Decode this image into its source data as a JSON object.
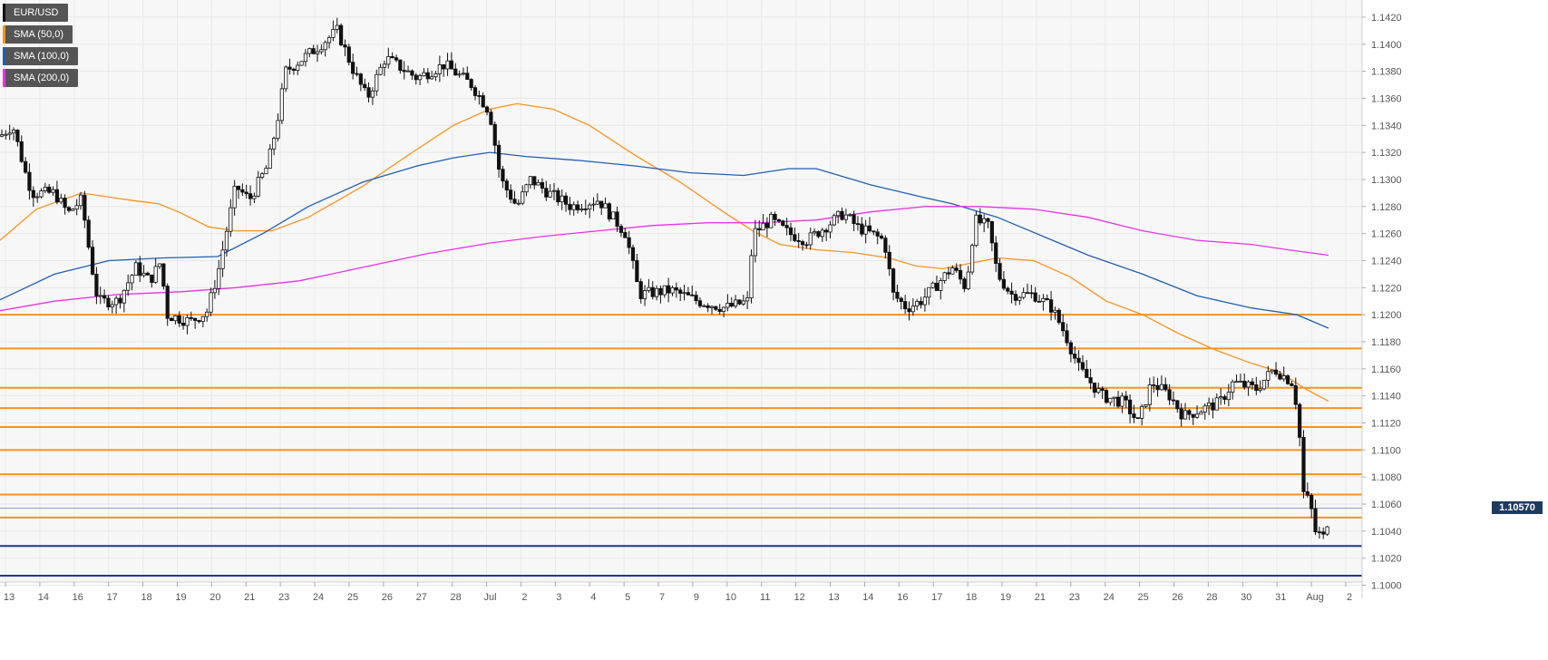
{
  "chart_data": {
    "type": "candlestick",
    "symbol": "EUR/USD",
    "current_price": "1.10570",
    "ylim": [
      1.1,
      1.143
    ],
    "y_ticks": [
      "1.1000",
      "1.1020",
      "1.1040",
      "1.1060",
      "1.1080",
      "1.1100",
      "1.1120",
      "1.1140",
      "1.1160",
      "1.1180",
      "1.1200",
      "1.1220",
      "1.1240",
      "1.1260",
      "1.1280",
      "1.1300",
      "1.1320",
      "1.1340",
      "1.1360",
      "1.1380",
      "1.1400",
      "1.1420"
    ],
    "x_tick_labels": [
      "13",
      "14",
      "16",
      "17",
      "18",
      "19",
      "20",
      "21",
      "23",
      "24",
      "25",
      "26",
      "27",
      "28",
      "Jul",
      "2",
      "3",
      "4",
      "5",
      "7",
      "9",
      "10",
      "11",
      "12",
      "13",
      "14",
      "16",
      "17",
      "18",
      "19",
      "21",
      "23",
      "24",
      "25",
      "26",
      "28",
      "30",
      "31",
      "Aug",
      "2"
    ],
    "legend": [
      {
        "label": "EUR/USD",
        "color": "#111111"
      },
      {
        "label": "SMA (50,0)",
        "color": "#f7931e"
      },
      {
        "label": "SMA (100,0)",
        "color": "#2060b0"
      },
      {
        "label": "SMA (200,0)",
        "color": "#e633e6"
      }
    ],
    "horizontal_levels": {
      "orange": [
        1.12,
        1.1175,
        1.1146,
        1.1131,
        1.1117,
        1.11,
        1.1082,
        1.1067,
        1.105
      ],
      "blue": [
        1.1029,
        1.1007
      ],
      "current_line": 1.1057
    },
    "series": [
      {
        "name": "EUR/USD",
        "kind": "ohlc",
        "anchors": [
          [
            0,
            1.1332
          ],
          [
            14,
            1.134
          ],
          [
            30,
            1.13
          ],
          [
            36,
            1.129
          ],
          [
            60,
            1.129
          ],
          [
            75,
            1.1275
          ],
          [
            90,
            1.1285
          ],
          [
            100,
            1.124
          ],
          [
            108,
            1.121
          ],
          [
            130,
            1.121
          ],
          [
            150,
            1.1235
          ],
          [
            165,
            1.1225
          ],
          [
            178,
            1.124
          ],
          [
            183,
            1.12
          ],
          [
            210,
            1.1195
          ],
          [
            228,
            1.1202
          ],
          [
            240,
            1.123
          ],
          [
            260,
            1.1295
          ],
          [
            275,
            1.1285
          ],
          [
            295,
            1.131
          ],
          [
            305,
            1.134
          ],
          [
            315,
            1.138
          ],
          [
            345,
            1.1395
          ],
          [
            372,
            1.141
          ],
          [
            390,
            1.138
          ],
          [
            405,
            1.136
          ],
          [
            425,
            1.139
          ],
          [
            460,
            1.1375
          ],
          [
            490,
            1.1385
          ],
          [
            520,
            1.137
          ],
          [
            540,
            1.135
          ],
          [
            552,
            1.13
          ],
          [
            570,
            1.128
          ],
          [
            585,
            1.13
          ],
          [
            605,
            1.129
          ],
          [
            630,
            1.128
          ],
          [
            660,
            1.1285
          ],
          [
            690,
            1.126
          ],
          [
            705,
            1.1215
          ],
          [
            740,
            1.1218
          ],
          [
            770,
            1.121
          ],
          [
            800,
            1.1205
          ],
          [
            825,
            1.121
          ],
          [
            830,
            1.126
          ],
          [
            850,
            1.127
          ],
          [
            870,
            1.126
          ],
          [
            890,
            1.1255
          ],
          [
            910,
            1.1265
          ],
          [
            930,
            1.1275
          ],
          [
            945,
            1.1265
          ],
          [
            975,
            1.1255
          ],
          [
            985,
            1.1215
          ],
          [
            1000,
            1.1205
          ],
          [
            1015,
            1.121
          ],
          [
            1030,
            1.122
          ],
          [
            1050,
            1.1235
          ],
          [
            1065,
            1.122
          ],
          [
            1075,
            1.127
          ],
          [
            1090,
            1.1265
          ],
          [
            1100,
            1.123
          ],
          [
            1115,
            1.1215
          ],
          [
            1140,
            1.1215
          ],
          [
            1160,
            1.1205
          ],
          [
            1175,
            1.1185
          ],
          [
            1190,
            1.116
          ],
          [
            1215,
            1.114
          ],
          [
            1240,
            1.1135
          ],
          [
            1255,
            1.112
          ],
          [
            1270,
            1.115
          ],
          [
            1290,
            1.114
          ],
          [
            1305,
            1.1125
          ],
          [
            1325,
            1.113
          ],
          [
            1345,
            1.1135
          ],
          [
            1360,
            1.115
          ],
          [
            1385,
            1.1145
          ],
          [
            1405,
            1.116
          ],
          [
            1425,
            1.115
          ],
          [
            1432,
            1.1125
          ],
          [
            1436,
            1.107
          ],
          [
            1445,
            1.106
          ],
          [
            1450,
            1.104
          ],
          [
            1460,
            1.1035
          ],
          [
            1466,
            1.1055
          ]
        ]
      },
      {
        "name": "SMA (50,0)",
        "color": "#f7931e",
        "points": [
          [
            0,
            1.1255
          ],
          [
            40,
            1.1278
          ],
          [
            90,
            1.129
          ],
          [
            140,
            1.1285
          ],
          [
            175,
            1.1282
          ],
          [
            200,
            1.1275
          ],
          [
            230,
            1.1265
          ],
          [
            260,
            1.1262
          ],
          [
            300,
            1.1262
          ],
          [
            340,
            1.1272
          ],
          [
            400,
            1.1295
          ],
          [
            450,
            1.1318
          ],
          [
            500,
            1.134
          ],
          [
            540,
            1.1352
          ],
          [
            570,
            1.1356
          ],
          [
            610,
            1.1352
          ],
          [
            650,
            1.134
          ],
          [
            700,
            1.1318
          ],
          [
            750,
            1.1298
          ],
          [
            800,
            1.1275
          ],
          [
            830,
            1.1262
          ],
          [
            860,
            1.1252
          ],
          [
            900,
            1.1248
          ],
          [
            940,
            1.1246
          ],
          [
            980,
            1.1242
          ],
          [
            1010,
            1.1236
          ],
          [
            1040,
            1.1234
          ],
          [
            1070,
            1.1238
          ],
          [
            1100,
            1.1242
          ],
          [
            1140,
            1.124
          ],
          [
            1180,
            1.1228
          ],
          [
            1220,
            1.121
          ],
          [
            1260,
            1.12
          ],
          [
            1300,
            1.1186
          ],
          [
            1340,
            1.1174
          ],
          [
            1380,
            1.1164
          ],
          [
            1410,
            1.1158
          ],
          [
            1440,
            1.1145
          ],
          [
            1465,
            1.1136
          ]
        ]
      },
      {
        "name": "SMA (100,0)",
        "color": "#2060b0",
        "points": [
          [
            0,
            1.1211
          ],
          [
            60,
            1.123
          ],
          [
            120,
            1.124
          ],
          [
            180,
            1.1242
          ],
          [
            240,
            1.1243
          ],
          [
            290,
            1.126
          ],
          [
            340,
            1.128
          ],
          [
            400,
            1.1298
          ],
          [
            460,
            1.131
          ],
          [
            500,
            1.1316
          ],
          [
            540,
            1.132
          ],
          [
            580,
            1.1317
          ],
          [
            640,
            1.1314
          ],
          [
            700,
            1.131
          ],
          [
            760,
            1.1305
          ],
          [
            820,
            1.1303
          ],
          [
            870,
            1.1308
          ],
          [
            900,
            1.1308
          ],
          [
            960,
            1.1296
          ],
          [
            1010,
            1.1288
          ],
          [
            1050,
            1.1282
          ],
          [
            1100,
            1.1272
          ],
          [
            1150,
            1.1258
          ],
          [
            1200,
            1.1244
          ],
          [
            1260,
            1.123
          ],
          [
            1320,
            1.1214
          ],
          [
            1380,
            1.1205
          ],
          [
            1430,
            1.12
          ],
          [
            1465,
            1.119
          ]
        ]
      },
      {
        "name": "SMA (200,0)",
        "color": "#e633e6",
        "points": [
          [
            0,
            1.1203
          ],
          [
            60,
            1.121
          ],
          [
            130,
            1.1215
          ],
          [
            200,
            1.1217
          ],
          [
            260,
            1.122
          ],
          [
            330,
            1.1225
          ],
          [
            400,
            1.1235
          ],
          [
            470,
            1.1245
          ],
          [
            540,
            1.1253
          ],
          [
            600,
            1.1258
          ],
          [
            660,
            1.1262
          ],
          [
            720,
            1.1266
          ],
          [
            780,
            1.1268
          ],
          [
            840,
            1.1268
          ],
          [
            900,
            1.127
          ],
          [
            960,
            1.1276
          ],
          [
            1020,
            1.128
          ],
          [
            1080,
            1.128
          ],
          [
            1140,
            1.1278
          ],
          [
            1200,
            1.1272
          ],
          [
            1260,
            1.1262
          ],
          [
            1320,
            1.1255
          ],
          [
            1380,
            1.1252
          ],
          [
            1420,
            1.1248
          ],
          [
            1465,
            1.1244
          ]
        ]
      }
    ]
  }
}
